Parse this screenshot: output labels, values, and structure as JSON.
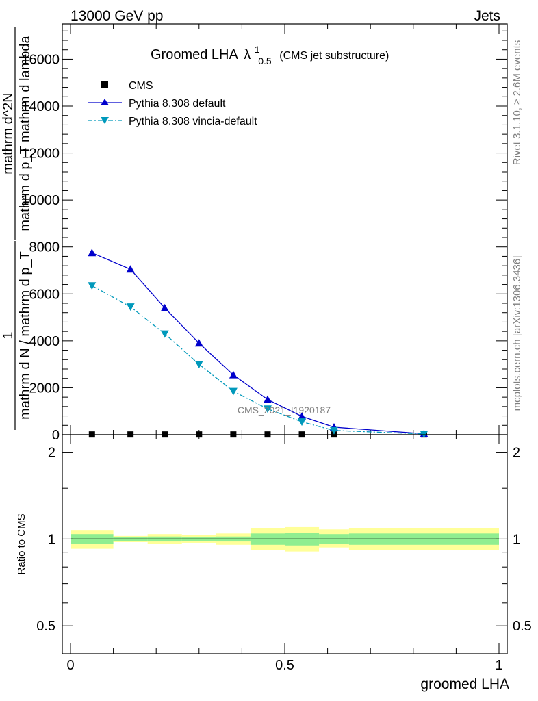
{
  "header": {
    "left": "13000 GeV pp",
    "right": "Jets"
  },
  "side_text": {
    "rivet": "Rivet 3.1.10, ≥ 2.6M events",
    "mcplots": "mcplots.cern.ch [arXiv:1306.3436]"
  },
  "watermark": "CMS_2021_I1920187",
  "chart_data": [
    {
      "type": "line",
      "title_main": "Groomed LHA",
      "title_symbol": "λ",
      "title_sup": "1",
      "title_sub": "0.5",
      "title_note": "(CMS jet substructure)",
      "ylabel_lines": [
        "1",
        "mathrm d N / mathrm d p_T",
        "mathrm d^2N",
        "mathrm d p_T mathrm d lambda"
      ],
      "ylabel_full": "1 / (mathrm d N / mathrm d p_T) · mathrm d^2N / (mathrm d p_T mathrm d lambda)",
      "xlim": [
        0,
        1
      ],
      "ylim": [
        0,
        17500
      ],
      "yticks": [
        0,
        2000,
        4000,
        6000,
        8000,
        10000,
        12000,
        14000,
        16000
      ],
      "ytick_labels": [
        "0",
        "2000",
        "4000",
        "6000",
        "8000",
        "10000",
        "12000",
        "14000",
        "16000"
      ],
      "legend_placement": "top-left",
      "bins": [
        0,
        0.1,
        0.18,
        0.26,
        0.34,
        0.42,
        0.5,
        0.58,
        0.65,
        1.0
      ],
      "series": [
        {
          "name": "CMS",
          "marker": "square",
          "color": "#000000",
          "x": [
            0.05,
            0.14,
            0.22,
            0.3,
            0.38,
            0.46,
            0.54,
            0.615,
            0.825
          ],
          "y": [
            10,
            10,
            10,
            10,
            10,
            10,
            10,
            10,
            10
          ]
        },
        {
          "name": "Pythia 8.308 default",
          "marker": "triangle-up",
          "line": "solid",
          "color": "#0000cc",
          "x": [
            0.05,
            0.14,
            0.22,
            0.3,
            0.38,
            0.46,
            0.54,
            0.615,
            0.825
          ],
          "y": [
            7750,
            7050,
            5400,
            3900,
            2550,
            1500,
            780,
            320,
            40
          ]
        },
        {
          "name": "Pythia 8.308 vincia-default",
          "marker": "triangle-down",
          "line": "dashdot",
          "color": "#0099bb",
          "x": [
            0.05,
            0.14,
            0.22,
            0.3,
            0.38,
            0.46,
            0.54,
            0.615,
            0.825
          ],
          "y": [
            6350,
            5450,
            4300,
            3000,
            1850,
            1100,
            550,
            180,
            30
          ]
        }
      ]
    },
    {
      "type": "area",
      "ylabel": "Ratio to CMS",
      "xlabel": "groomed LHA",
      "xlim": [
        0,
        1
      ],
      "ylim": [
        0.4,
        2.3
      ],
      "log_scale": true,
      "yticks": [
        0.5,
        1,
        2
      ],
      "ytick_labels": [
        "0.5",
        "1",
        "2"
      ],
      "xticks": [
        0,
        0.5,
        1
      ],
      "xtick_labels": [
        "0",
        "0.5",
        "1"
      ],
      "bins": [
        0,
        0.1,
        0.18,
        0.26,
        0.34,
        0.42,
        0.5,
        0.58,
        0.65,
        1.0
      ],
      "band_stat": {
        "color": "#90ee90",
        "lo": [
          0.96,
          0.985,
          0.98,
          0.985,
          0.98,
          0.955,
          0.95,
          0.96,
          0.955
        ],
        "hi": [
          1.04,
          1.015,
          1.02,
          1.015,
          1.02,
          1.045,
          1.05,
          1.04,
          1.045
        ]
      },
      "band_total": {
        "color": "#ffff99",
        "lo": [
          0.925,
          0.975,
          0.96,
          0.97,
          0.955,
          0.915,
          0.905,
          0.935,
          0.915
        ],
        "hi": [
          1.075,
          1.025,
          1.04,
          1.03,
          1.045,
          1.09,
          1.1,
          1.08,
          1.09
        ]
      },
      "reference": 1
    }
  ]
}
